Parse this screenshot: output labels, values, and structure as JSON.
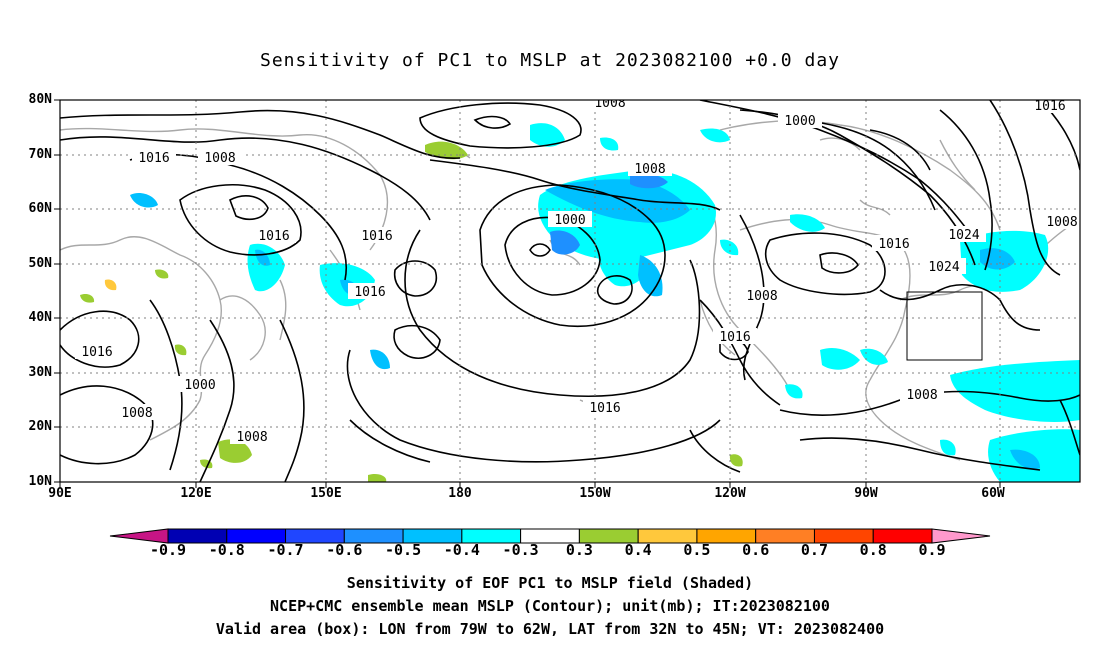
{
  "title": "Sensitivity of PC1 to MSLP at 2023082100 +0.0 day",
  "lat_labels": [
    "80N",
    "70N",
    "60N",
    "50N",
    "40N",
    "30N",
    "20N",
    "10N"
  ],
  "lon_labels": [
    "90E",
    "120E",
    "150E",
    "180",
    "150W",
    "120W",
    "90W",
    "60W"
  ],
  "contour_labels": [
    "1008",
    "1016",
    "1000",
    "1016",
    "1008",
    "1008",
    "1000",
    "1008",
    "1016",
    "1016",
    "1024",
    "1016",
    "1024",
    "1016",
    "1008",
    "1016",
    "1016",
    "1000",
    "1008",
    "1016",
    "1008",
    "1008",
    "1016",
    "1008",
    "1008"
  ],
  "colorbar": {
    "labels": [
      "-0.9",
      "-0.8",
      "-0.7",
      "-0.6",
      "-0.5",
      "-0.4",
      "-0.3",
      "0.3",
      "0.4",
      "0.5",
      "0.6",
      "0.7",
      "0.8",
      "0.9"
    ],
    "colors": [
      "#c71585",
      "#0000b3",
      "#0000ff",
      "#2046ff",
      "#1e90ff",
      "#00c0ff",
      "#00ffff",
      "#ffffff",
      "#9acd32",
      "#ffc83c",
      "#ffa500",
      "#ff7f24",
      "#ff4500",
      "#ff0000",
      "#ff99cc"
    ]
  },
  "valid_box": {
    "lon_range": [
      "79W",
      "62W"
    ],
    "lat_range": [
      "32N",
      "45N"
    ]
  },
  "captions": [
    "Sensitivity of EOF PC1 to MSLP field (Shaded)",
    "NCEP+CMC ensemble mean MSLP (Contour); unit(mb); IT:2023082100",
    "Valid area (box): LON from 79W to 62W, LAT from 32N to 45N; VT: 2023082400"
  ]
}
